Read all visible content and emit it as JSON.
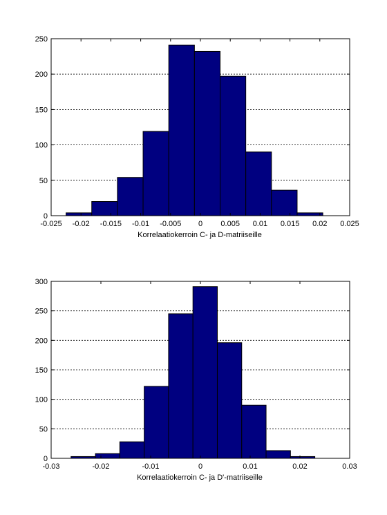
{
  "chart_data": [
    {
      "type": "bar",
      "subtype": "histogram",
      "xlabel": "Korrelaatiokerroin C- ja D-matriiseille",
      "ylabel": "",
      "xlim": [
        -0.025,
        0.025
      ],
      "ylim": [
        0,
        250
      ],
      "xticks": [
        -0.025,
        -0.02,
        -0.015,
        -0.01,
        -0.005,
        0,
        0.005,
        0.01,
        0.015,
        0.02,
        0.025
      ],
      "xtick_labels": [
        "-0.025",
        "-0.02",
        "-0.015",
        "-0.01",
        "-0.005",
        "0",
        "0.005",
        "0.01",
        "0.015",
        "0.02",
        "0.025"
      ],
      "yticks": [
        0,
        50,
        100,
        150,
        200,
        250
      ],
      "ytick_labels": [
        "0",
        "50",
        "100",
        "150",
        "200",
        "250"
      ],
      "grid": "y-dashed",
      "bar_color": "#000080",
      "edge_color": "#000000",
      "bins": [
        {
          "x0": -0.0225,
          "x1": -0.0182,
          "count": 4
        },
        {
          "x0": -0.0182,
          "x1": -0.0139,
          "count": 20
        },
        {
          "x0": -0.0139,
          "x1": -0.0096,
          "count": 54
        },
        {
          "x0": -0.0096,
          "x1": -0.0053,
          "count": 119
        },
        {
          "x0": -0.0053,
          "x1": -0.001,
          "count": 241
        },
        {
          "x0": -0.001,
          "x1": 0.0033,
          "count": 232
        },
        {
          "x0": 0.0033,
          "x1": 0.0076,
          "count": 197
        },
        {
          "x0": 0.0076,
          "x1": 0.0119,
          "count": 90
        },
        {
          "x0": 0.0119,
          "x1": 0.0162,
          "count": 36
        },
        {
          "x0": 0.0162,
          "x1": 0.0205,
          "count": 4
        }
      ]
    },
    {
      "type": "bar",
      "subtype": "histogram",
      "xlabel": "Korrelaatiokerroin C- ja D'-matriiseille",
      "ylabel": "",
      "xlim": [
        -0.03,
        0.03
      ],
      "ylim": [
        0,
        300
      ],
      "xticks": [
        -0.03,
        -0.02,
        -0.01,
        0,
        0.01,
        0.02,
        0.03
      ],
      "xtick_labels": [
        "-0.03",
        "-0.02",
        "-0.01",
        "0",
        "0.01",
        "0.02",
        "0.03"
      ],
      "yticks": [
        0,
        50,
        100,
        150,
        200,
        250,
        300
      ],
      "ytick_labels": [
        "0",
        "50",
        "100",
        "150",
        "200",
        "250",
        "300"
      ],
      "grid": "y-dashed",
      "bar_color": "#000080",
      "edge_color": "#000000",
      "bins": [
        {
          "x0": -0.026,
          "x1": -0.0211,
          "count": 3
        },
        {
          "x0": -0.0211,
          "x1": -0.0162,
          "count": 8
        },
        {
          "x0": -0.0162,
          "x1": -0.0113,
          "count": 28
        },
        {
          "x0": -0.0113,
          "x1": -0.0064,
          "count": 122
        },
        {
          "x0": -0.0064,
          "x1": -0.0015,
          "count": 245
        },
        {
          "x0": -0.0015,
          "x1": 0.0034,
          "count": 291
        },
        {
          "x0": 0.0034,
          "x1": 0.0083,
          "count": 196
        },
        {
          "x0": 0.0083,
          "x1": 0.0132,
          "count": 90
        },
        {
          "x0": 0.0132,
          "x1": 0.0181,
          "count": 13
        },
        {
          "x0": 0.0181,
          "x1": 0.023,
          "count": 3
        }
      ]
    }
  ]
}
